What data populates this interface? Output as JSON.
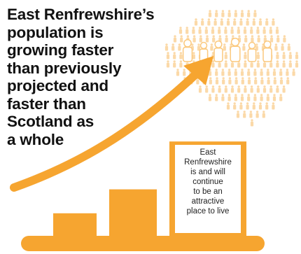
{
  "headline": {
    "lines": [
      "East Renfrewshire’s",
      "population is",
      "growing faster",
      "than previously",
      "projected and",
      "faster than",
      "Scotland as",
      "a whole"
    ]
  },
  "callout": {
    "lines": [
      "East",
      "Renfrewshire",
      "is and will",
      "continue",
      "to be an",
      "attractive",
      "place to live"
    ]
  },
  "graphic": {
    "bars": [
      0.18,
      0.36,
      0.72
    ],
    "icons": [
      "people-crowd-map-icon",
      "growth-arrow-icon",
      "family-icon"
    ]
  },
  "colors": {
    "accent": "#f6a530",
    "accent_light": "#fbc97e",
    "crowd": "#fbd9a8",
    "text": "#111111",
    "card": "#ffffff"
  }
}
